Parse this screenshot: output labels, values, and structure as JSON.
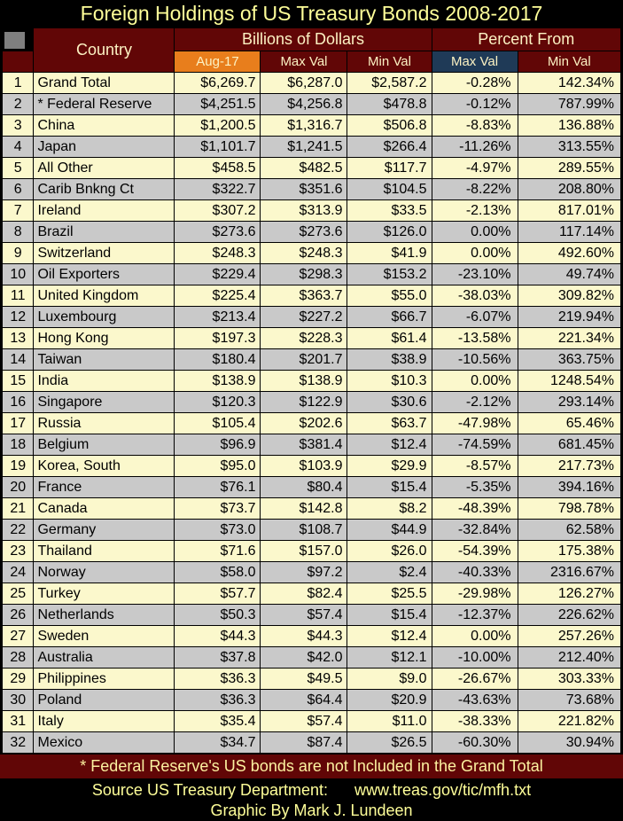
{
  "title": "Foreign Holdings of US Treasury Bonds 2008-2017",
  "header": {
    "country": "Country",
    "billions_group": "Billions of Dollars",
    "percent_group": "Percent From",
    "sub_aug": "Aug-17",
    "sub_max_dollar": "Max Val",
    "sub_min_dollar": "Min Val",
    "sub_max_pct": "Max Val",
    "sub_min_pct": "Min Val"
  },
  "footer": {
    "note": "* Federal Reserve's US bonds are not Included in the Grand Total",
    "source_label": "Source US Treasury Department:",
    "source_url": "www.treas.gov/tic/mfh.txt",
    "credit": "Graphic By Mark J. Lundeen"
  },
  "colors": {
    "background": "#000000",
    "title_text": "#FFFF99",
    "header_maroon": "#610606",
    "header_text": "#FCF2C3",
    "aug17_orange": "#E87E1C",
    "pct_max_navy": "#1F3A57",
    "row_yellow": "#FBF8CC",
    "row_gray": "#C9C9C9",
    "corner_gray": "#7F7F7F"
  },
  "chart_data": {
    "type": "table",
    "title": "Foreign Holdings of US Treasury Bonds 2008-2017",
    "column_groups": [
      {
        "label": "",
        "span": 2
      },
      {
        "label": "Billions of Dollars",
        "span": 3
      },
      {
        "label": "Percent From",
        "span": 2
      }
    ],
    "columns": [
      "#",
      "Country",
      "Aug-17",
      "Max Val",
      "Min Val",
      "Max Val",
      "Min Val"
    ],
    "rows": [
      [
        1,
        "Grand Total",
        "$6,269.7",
        "$6,287.0",
        "$2,587.2",
        "-0.28%",
        "142.34%"
      ],
      [
        2,
        "* Federal Reserve",
        "$4,251.5",
        "$4,256.8",
        "$478.8",
        "-0.12%",
        "787.99%"
      ],
      [
        3,
        "China",
        "$1,200.5",
        "$1,316.7",
        "$506.8",
        "-8.83%",
        "136.88%"
      ],
      [
        4,
        "Japan",
        "$1,101.7",
        "$1,241.5",
        "$266.4",
        "-11.26%",
        "313.55%"
      ],
      [
        5,
        "All Other",
        "$458.5",
        "$482.5",
        "$117.7",
        "-4.97%",
        "289.55%"
      ],
      [
        6,
        "Carib Bnkng Ct",
        "$322.7",
        "$351.6",
        "$104.5",
        "-8.22%",
        "208.80%"
      ],
      [
        7,
        "Ireland",
        "$307.2",
        "$313.9",
        "$33.5",
        "-2.13%",
        "817.01%"
      ],
      [
        8,
        "Brazil",
        "$273.6",
        "$273.6",
        "$126.0",
        "0.00%",
        "117.14%"
      ],
      [
        9,
        "Switzerland",
        "$248.3",
        "$248.3",
        "$41.9",
        "0.00%",
        "492.60%"
      ],
      [
        10,
        "Oil Exporters",
        "$229.4",
        "$298.3",
        "$153.2",
        "-23.10%",
        "49.74%"
      ],
      [
        11,
        "United Kingdom",
        "$225.4",
        "$363.7",
        "$55.0",
        "-38.03%",
        "309.82%"
      ],
      [
        12,
        "Luxembourg",
        "$213.4",
        "$227.2",
        "$66.7",
        "-6.07%",
        "219.94%"
      ],
      [
        13,
        "Hong Kong",
        "$197.3",
        "$228.3",
        "$61.4",
        "-13.58%",
        "221.34%"
      ],
      [
        14,
        "Taiwan",
        "$180.4",
        "$201.7",
        "$38.9",
        "-10.56%",
        "363.75%"
      ],
      [
        15,
        "India",
        "$138.9",
        "$138.9",
        "$10.3",
        "0.00%",
        "1248.54%"
      ],
      [
        16,
        "Singapore",
        "$120.3",
        "$122.9",
        "$30.6",
        "-2.12%",
        "293.14%"
      ],
      [
        17,
        "Russia",
        "$105.4",
        "$202.6",
        "$63.7",
        "-47.98%",
        "65.46%"
      ],
      [
        18,
        "Belgium",
        "$96.9",
        "$381.4",
        "$12.4",
        "-74.59%",
        "681.45%"
      ],
      [
        19,
        "Korea, South",
        "$95.0",
        "$103.9",
        "$29.9",
        "-8.57%",
        "217.73%"
      ],
      [
        20,
        "France",
        "$76.1",
        "$80.4",
        "$15.4",
        "-5.35%",
        "394.16%"
      ],
      [
        21,
        "Canada",
        "$73.7",
        "$142.8",
        "$8.2",
        "-48.39%",
        "798.78%"
      ],
      [
        22,
        "Germany",
        "$73.0",
        "$108.7",
        "$44.9",
        "-32.84%",
        "62.58%"
      ],
      [
        23,
        "Thailand",
        "$71.6",
        "$157.0",
        "$26.0",
        "-54.39%",
        "175.38%"
      ],
      [
        24,
        "Norway",
        "$58.0",
        "$97.2",
        "$2.4",
        "-40.33%",
        "2316.67%"
      ],
      [
        25,
        "Turkey",
        "$57.7",
        "$82.4",
        "$25.5",
        "-29.98%",
        "126.27%"
      ],
      [
        26,
        "Netherlands",
        "$50.3",
        "$57.4",
        "$15.4",
        "-12.37%",
        "226.62%"
      ],
      [
        27,
        "Sweden",
        "$44.3",
        "$44.3",
        "$12.4",
        "0.00%",
        "257.26%"
      ],
      [
        28,
        "Australia",
        "$37.8",
        "$42.0",
        "$12.1",
        "-10.00%",
        "212.40%"
      ],
      [
        29,
        "Philippines",
        "$36.3",
        "$49.5",
        "$9.0",
        "-26.67%",
        "303.33%"
      ],
      [
        30,
        "Poland",
        "$36.3",
        "$64.4",
        "$20.9",
        "-43.63%",
        "73.68%"
      ],
      [
        31,
        "Italy",
        "$35.4",
        "$57.4",
        "$11.0",
        "-38.33%",
        "221.82%"
      ],
      [
        32,
        "Mexico",
        "$34.7",
        "$87.4",
        "$26.5",
        "-60.30%",
        "30.94%"
      ]
    ]
  }
}
